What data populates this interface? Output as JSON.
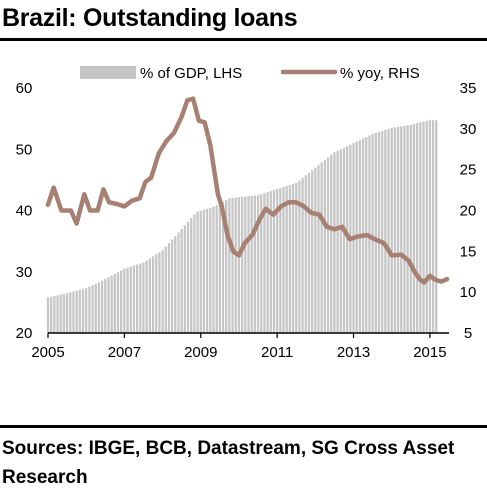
{
  "title": "Brazil: Outstanding loans",
  "source": "Sources: IBGE, BCB, Datastream, SG Cross Asset Research",
  "colors": {
    "bars": "#c6c6c6",
    "line": "#a68072",
    "text": "#000000",
    "background": "#ffffff",
    "rule": "#000000"
  },
  "chart_data": {
    "type": "bar+line",
    "legend": [
      "% of GDP, LHS",
      "% yoy, RHS"
    ],
    "legend_position": "top",
    "grid": false,
    "x_ticks": [
      "2005",
      "2007",
      "2009",
      "2011",
      "2013",
      "2015"
    ],
    "x_range": [
      2005,
      2015.5
    ],
    "y_left": {
      "range": [
        20,
        60
      ],
      "ticks": [
        "20",
        "30",
        "40",
        "50",
        "60"
      ]
    },
    "y_right": {
      "range": [
        5,
        35
      ],
      "ticks": [
        "5",
        "10",
        "15",
        "20",
        "25",
        "30",
        "35"
      ]
    },
    "series": [
      {
        "name": "% of GDP, LHS",
        "kind": "bar",
        "axis": "left",
        "points": [
          [
            2005.0,
            25.8
          ],
          [
            2005.5,
            26.5
          ],
          [
            2006.0,
            27.3
          ],
          [
            2006.5,
            28.8
          ],
          [
            2007.0,
            30.5
          ],
          [
            2007.5,
            31.5
          ],
          [
            2008.0,
            33.5
          ],
          [
            2008.5,
            37.0
          ],
          [
            2008.9,
            39.8
          ],
          [
            2009.3,
            40.5
          ],
          [
            2009.75,
            42.0
          ],
          [
            2010.5,
            42.5
          ],
          [
            2011.0,
            43.5
          ],
          [
            2011.5,
            44.5
          ],
          [
            2012.0,
            47.0
          ],
          [
            2012.5,
            49.5
          ],
          [
            2013.0,
            51.0
          ],
          [
            2013.5,
            52.5
          ],
          [
            2014.0,
            53.5
          ],
          [
            2014.5,
            54.0
          ],
          [
            2015.0,
            54.8
          ],
          [
            2015.2,
            54.7
          ]
        ]
      },
      {
        "name": "% yoy, RHS",
        "kind": "line",
        "axis": "right",
        "points": [
          [
            2005.0,
            20.7
          ],
          [
            2005.15,
            22.8
          ],
          [
            2005.35,
            20.0
          ],
          [
            2005.6,
            20.0
          ],
          [
            2005.75,
            18.4
          ],
          [
            2005.95,
            22.0
          ],
          [
            2006.1,
            20.0
          ],
          [
            2006.3,
            20.0
          ],
          [
            2006.45,
            22.6
          ],
          [
            2006.6,
            21.0
          ],
          [
            2006.8,
            20.8
          ],
          [
            2007.0,
            20.5
          ],
          [
            2007.2,
            21.2
          ],
          [
            2007.4,
            21.5
          ],
          [
            2007.55,
            23.5
          ],
          [
            2007.7,
            24.0
          ],
          [
            2007.9,
            27.0
          ],
          [
            2008.1,
            28.5
          ],
          [
            2008.3,
            29.5
          ],
          [
            2008.5,
            31.5
          ],
          [
            2008.65,
            33.5
          ],
          [
            2008.8,
            33.7
          ],
          [
            2008.95,
            31.0
          ],
          [
            2009.1,
            30.8
          ],
          [
            2009.25,
            28.0
          ],
          [
            2009.45,
            22.0
          ],
          [
            2009.55,
            20.5
          ],
          [
            2009.7,
            17.0
          ],
          [
            2009.85,
            15.0
          ],
          [
            2010.0,
            14.5
          ],
          [
            2010.15,
            16.0
          ],
          [
            2010.35,
            17.0
          ],
          [
            2010.55,
            19.0
          ],
          [
            2010.7,
            20.2
          ],
          [
            2010.9,
            19.5
          ],
          [
            2011.1,
            20.5
          ],
          [
            2011.3,
            21.0
          ],
          [
            2011.5,
            21.0
          ],
          [
            2011.7,
            20.5
          ],
          [
            2011.9,
            19.7
          ],
          [
            2012.1,
            19.5
          ],
          [
            2012.3,
            18.0
          ],
          [
            2012.5,
            17.7
          ],
          [
            2012.7,
            18.0
          ],
          [
            2012.9,
            16.5
          ],
          [
            2013.1,
            16.8
          ],
          [
            2013.35,
            17.0
          ],
          [
            2013.55,
            16.5
          ],
          [
            2013.8,
            16.0
          ],
          [
            2014.0,
            14.5
          ],
          [
            2014.25,
            14.6
          ],
          [
            2014.45,
            13.8
          ],
          [
            2014.6,
            12.5
          ],
          [
            2014.75,
            11.5
          ],
          [
            2014.85,
            11.2
          ],
          [
            2015.0,
            12.0
          ],
          [
            2015.15,
            11.5
          ],
          [
            2015.3,
            11.3
          ],
          [
            2015.45,
            11.6
          ]
        ]
      }
    ]
  }
}
